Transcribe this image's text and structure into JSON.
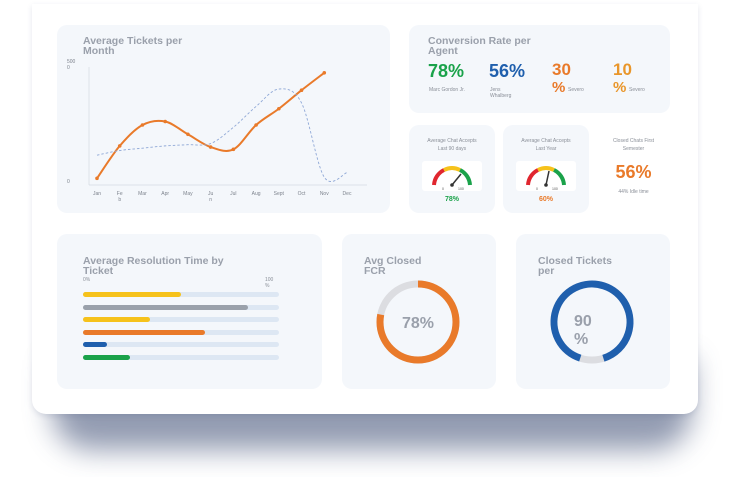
{
  "colors": {
    "orange": "#e97a2a",
    "yellow": "#f6c21b",
    "gray": "#9aa1ab",
    "blue": "#1f5fad",
    "green": "#1aa24a",
    "track": "#dde7f3",
    "dashed": "#8ea7d6"
  },
  "avg_tickets": {
    "title_line1": "Average Tickets per",
    "title_line2": "Month",
    "y_top_1": "500",
    "y_top_2": "0",
    "y_bottom": "0",
    "months": [
      "Jan",
      "Fe",
      "Mar",
      "Apr",
      "May",
      "Ju",
      "Jul",
      "Aug",
      "Sept",
      "Oct",
      "Nov",
      "Dec"
    ],
    "months_wrap": [
      "",
      "b",
      "",
      "",
      "",
      "n",
      "",
      "",
      "",
      "",
      "",
      ""
    ]
  },
  "conversion": {
    "title_line1": "Conversion Rate per",
    "title_line2": "Agent",
    "agents": [
      {
        "value": "78%",
        "name": "Marc Gordon Jr.",
        "name2": "",
        "color": "#1aa24a"
      },
      {
        "value": "56%",
        "name": "Jens",
        "name2": "Whalberg",
        "color": "#1f5fad"
      },
      {
        "value": "30",
        "value2": "%",
        "name": "Severo",
        "color": "#e97a2a"
      },
      {
        "value": "10",
        "value2": "%",
        "name": "Severo",
        "color": "#e9962a"
      }
    ]
  },
  "chat_accepts_90": {
    "title_line1": "Average Chat Accepts",
    "title_line2": "Last 90 days",
    "value": "78%",
    "gauge_min": "0",
    "gauge_max": "100"
  },
  "chat_accepts_year": {
    "title_line1": "Average Chat Accepts",
    "title_line2": "Last Year",
    "value": "60%",
    "gauge_min": "0",
    "gauge_max": "100"
  },
  "closed_chats": {
    "title_line1": "Closed Chats First",
    "title_line2": "Semester",
    "value": "56%",
    "sub": "44% Idle time"
  },
  "resolution": {
    "title_line1": "Average Resolution Time by",
    "title_line2": "Ticket",
    "label_left": "0%",
    "label_right_1": "100",
    "label_right_2": "%",
    "bars": [
      {
        "value": 0.5,
        "color": "#f6c21b"
      },
      {
        "value": 0.84,
        "color": "#9aa1ab"
      },
      {
        "value": 0.34,
        "color": "#f6c21b"
      },
      {
        "value": 0.62,
        "color": "#e97a2a"
      },
      {
        "value": 0.12,
        "color": "#1f5fad"
      },
      {
        "value": 0.24,
        "color": "#1aa24a"
      }
    ]
  },
  "avg_closed": {
    "title_line1": "Avg Closed",
    "title_line2": "FCR",
    "value": "78%",
    "fraction": 0.78
  },
  "closed_tickets": {
    "title_line1": "Closed Tickets",
    "title_line2": "per",
    "value_line1": "90",
    "value_line2": "%",
    "fraction": 0.9
  },
  "chart_data": {
    "type": "line",
    "categories": [
      "Jan",
      "Feb",
      "Mar",
      "Apr",
      "May",
      "Jun",
      "Jul",
      "Aug",
      "Sept",
      "Oct",
      "Nov",
      "Dec"
    ],
    "series": [
      {
        "values": [
          20,
          160,
          250,
          265,
          210,
          155,
          145,
          250,
          320,
          400,
          475,
          null
        ],
        "style": "solid"
      },
      {
        "values": [
          120,
          140,
          150,
          160,
          165,
          170,
          240,
          330,
          405,
          345,
          25,
          45
        ],
        "style": "dashed"
      }
    ],
    "ylim": [
      0,
      500
    ],
    "grid": false,
    "xlabel": "",
    "ylabel": ""
  }
}
